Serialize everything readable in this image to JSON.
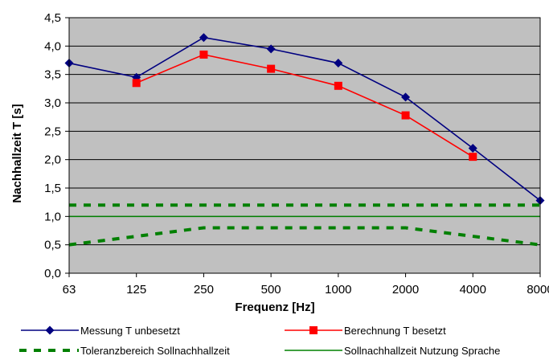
{
  "chart_data": {
    "type": "line",
    "categories": [
      "63",
      "125",
      "250",
      "500",
      "1000",
      "2000",
      "4000",
      "8000"
    ],
    "xlabel": "Frequenz [Hz]",
    "ylabel": "Nachhallzeit T [s]",
    "ylim": [
      0,
      4.5
    ],
    "yticks": [
      "0,0",
      "0,5",
      "1,0",
      "1,5",
      "2,0",
      "2,5",
      "3,0",
      "3,5",
      "4,0",
      "4,5"
    ],
    "grid": true,
    "legend_position": "bottom",
    "plot_background": "#c0c0c0",
    "series": [
      {
        "name": "Messung T unbesetzt",
        "color": "#000080",
        "marker": "diamond",
        "style": "solid",
        "values": [
          3.7,
          3.45,
          4.15,
          3.95,
          3.7,
          3.1,
          2.2,
          1.28
        ]
      },
      {
        "name": "Berechnung T besetzt",
        "color": "#ff0000",
        "marker": "square",
        "style": "solid",
        "values": [
          null,
          3.35,
          3.85,
          3.6,
          3.3,
          2.78,
          2.05,
          null
        ]
      },
      {
        "name": "Toleranzbereich Sollnachhallzeit",
        "color": "#008000",
        "marker": "none",
        "style": "dashed",
        "values": [
          1.2,
          1.2,
          1.2,
          1.2,
          1.2,
          1.2,
          1.2,
          1.2
        ],
        "lower_values": [
          0.5,
          0.65,
          0.8,
          0.8,
          0.8,
          0.8,
          0.65,
          0.5
        ]
      },
      {
        "name": "Sollnachhallzeit Nutzung Sprache",
        "color": "#008000",
        "marker": "none",
        "style": "solid",
        "values": [
          1.0,
          1.0,
          1.0,
          1.0,
          1.0,
          1.0,
          1.0,
          1.0
        ]
      }
    ]
  }
}
